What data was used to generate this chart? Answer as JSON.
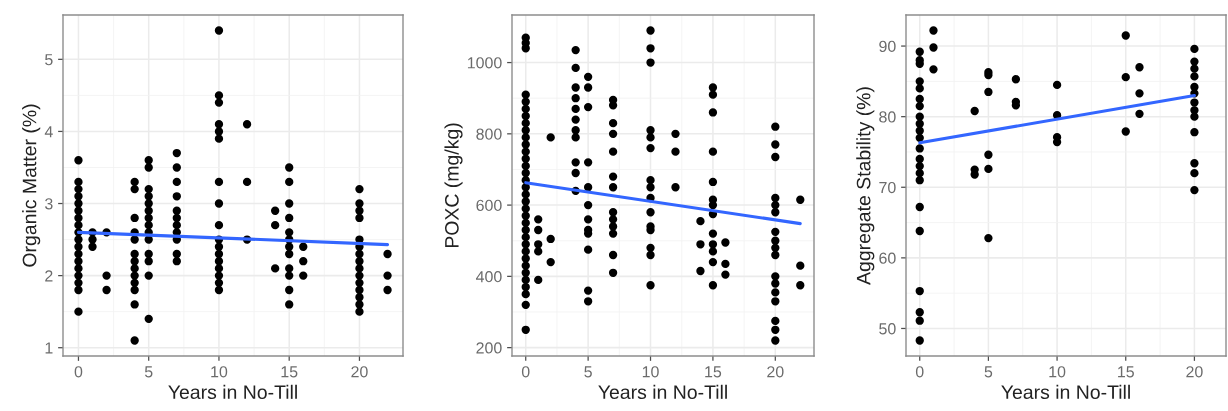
{
  "chart_data": [
    {
      "type": "scatter",
      "xlabel": "Years in No-Till",
      "ylabel": "Organic Matter (%)",
      "xlim": [
        -1.1,
        23.1
      ],
      "ylim": [
        0.885,
        5.615
      ],
      "xticks": [
        0,
        5,
        10,
        15,
        20
      ],
      "yticks": [
        1,
        2,
        3,
        4,
        5
      ],
      "grid": true,
      "series": [
        {
          "marker": "circle",
          "color": "#000000",
          "x": [
            0,
            0,
            0,
            0,
            0,
            0,
            0,
            0,
            0,
            0,
            0,
            0,
            0,
            0,
            0,
            0,
            0,
            0,
            1,
            1,
            1,
            2,
            2,
            2,
            4,
            4,
            4,
            4,
            4,
            4,
            4,
            4,
            4,
            4,
            4,
            4,
            4,
            5,
            5,
            5,
            5,
            5,
            5,
            5,
            5,
            5,
            5,
            5,
            5,
            5,
            5,
            7,
            7,
            7,
            7,
            7,
            7,
            7,
            7,
            7,
            7,
            7,
            10,
            10,
            10,
            10,
            10,
            10,
            10,
            10,
            10,
            10,
            10,
            10,
            10,
            10,
            10,
            10,
            10,
            12,
            12,
            12,
            14,
            14,
            14,
            15,
            15,
            15,
            15,
            15,
            15,
            15,
            15,
            15,
            15,
            15,
            15,
            16,
            16,
            16,
            20,
            20,
            20,
            20,
            20,
            20,
            20,
            20,
            20,
            20,
            20,
            20,
            20,
            20,
            20,
            22,
            22,
            22
          ],
          "values": [
            1.5,
            1.8,
            1.9,
            2.0,
            2.1,
            2.2,
            2.3,
            2.4,
            2.5,
            2.6,
            2.7,
            2.8,
            2.9,
            3.0,
            3.1,
            3.2,
            3.3,
            3.6,
            2.4,
            2.5,
            2.6,
            2.6,
            2.0,
            1.8,
            3.3,
            3.2,
            2.8,
            2.6,
            2.5,
            2.3,
            2.2,
            2.1,
            2.0,
            1.9,
            1.8,
            1.6,
            1.1,
            3.6,
            3.5,
            3.2,
            3.1,
            3.0,
            2.9,
            2.8,
            2.7,
            2.6,
            2.5,
            2.3,
            2.2,
            2.0,
            1.4,
            3.7,
            3.5,
            3.3,
            3.1,
            2.9,
            2.8,
            2.7,
            2.6,
            2.5,
            2.3,
            2.2,
            5.4,
            4.5,
            4.4,
            4.1,
            4.0,
            3.9,
            3.3,
            3.0,
            2.7,
            2.5,
            2.4,
            2.3,
            2.2,
            2.1,
            2.0,
            1.9,
            1.8,
            4.1,
            3.3,
            2.5,
            2.9,
            2.7,
            2.1,
            3.5,
            3.3,
            3.0,
            2.8,
            2.6,
            2.5,
            2.4,
            2.3,
            2.1,
            2.0,
            1.8,
            1.6,
            2.4,
            2.2,
            2.0,
            3.2,
            3.0,
            2.9,
            2.8,
            2.5,
            2.4,
            2.3,
            2.2,
            2.1,
            2.0,
            1.9,
            1.8,
            1.7,
            1.6,
            1.5,
            2.3,
            2.0,
            1.8
          ]
        },
        {
          "type": "line",
          "color": "#3366ff",
          "x": [
            0,
            22
          ],
          "values": [
            2.6,
            2.43
          ]
        }
      ]
    },
    {
      "type": "scatter",
      "xlabel": "Years in No-Till",
      "ylabel": "POXC (mg/kg)",
      "xlim": [
        -1.1,
        23.1
      ],
      "ylim": [
        176.5,
        1133.5
      ],
      "xticks": [
        0,
        5,
        10,
        15,
        20
      ],
      "yticks": [
        200,
        400,
        600,
        800,
        1000
      ],
      "grid": true,
      "series": [
        {
          "marker": "circle",
          "color": "#000000",
          "x": [
            0,
            0,
            0,
            0,
            0,
            0,
            0,
            0,
            0,
            0,
            0,
            0,
            0,
            0,
            0,
            0,
            0,
            0,
            0,
            0,
            0,
            0,
            0,
            0,
            0,
            0,
            0,
            0,
            0,
            0,
            0,
            0,
            0,
            0,
            1,
            1,
            1,
            1,
            1,
            2,
            2,
            2,
            4,
            4,
            4,
            4,
            4,
            4,
            4,
            4,
            4,
            4,
            4,
            5,
            5,
            5,
            5,
            5,
            5,
            5,
            5,
            5,
            5,
            5,
            5,
            7,
            7,
            7,
            7,
            7,
            7,
            7,
            7,
            7,
            7,
            7,
            7,
            7,
            10,
            10,
            10,
            10,
            10,
            10,
            10,
            10,
            10,
            10,
            10,
            10,
            10,
            10,
            10,
            12,
            12,
            12,
            14,
            14,
            14,
            15,
            15,
            15,
            15,
            15,
            15,
            15,
            15,
            15,
            15,
            15,
            15,
            15,
            16,
            16,
            16,
            20,
            20,
            20,
            20,
            20,
            20,
            20,
            20,
            20,
            20,
            20,
            20,
            20,
            20,
            20,
            20,
            20,
            22,
            22,
            22
          ],
          "values": [
            1070,
            1055,
            1040,
            910,
            890,
            870,
            850,
            830,
            810,
            790,
            770,
            750,
            730,
            710,
            690,
            670,
            650,
            630,
            610,
            590,
            570,
            550,
            530,
            510,
            490,
            470,
            450,
            430,
            410,
            390,
            370,
            350,
            320,
            250,
            560,
            530,
            490,
            470,
            390,
            790,
            505,
            440,
            1035,
            985,
            930,
            900,
            870,
            840,
            810,
            790,
            720,
            690,
            640,
            960,
            930,
            875,
            720,
            650,
            600,
            560,
            530,
            520,
            475,
            360,
            330,
            895,
            880,
            830,
            800,
            750,
            680,
            650,
            580,
            560,
            540,
            520,
            460,
            410,
            1090,
            1040,
            1000,
            810,
            790,
            760,
            670,
            650,
            620,
            580,
            540,
            530,
            480,
            460,
            375,
            800,
            750,
            650,
            555,
            490,
            415,
            930,
            910,
            860,
            750,
            665,
            615,
            600,
            575,
            520,
            490,
            470,
            440,
            375,
            495,
            435,
            405,
            820,
            770,
            735,
            620,
            600,
            580,
            525,
            500,
            480,
            460,
            400,
            380,
            355,
            330,
            275,
            250,
            220,
            615,
            430,
            375
          ]
        },
        {
          "type": "line",
          "color": "#3366ff",
          "x": [
            0,
            22
          ],
          "values": [
            663,
            548
          ]
        }
      ]
    },
    {
      "type": "scatter",
      "xlabel": "Years in No-Till",
      "ylabel": "Aggregate Stability (%)",
      "xlim": [
        -1,
        22.3
      ],
      "ylim": [
        46.1,
        94.4
      ],
      "xticks": [
        0,
        5,
        10,
        15,
        20
      ],
      "yticks": [
        50,
        60,
        70,
        80,
        90
      ],
      "grid": true,
      "series": [
        {
          "marker": "circle",
          "color": "#000000",
          "x": [
            0,
            0,
            0,
            0,
            0,
            0,
            0,
            0,
            0,
            0,
            0,
            0,
            0,
            0,
            0,
            0,
            0,
            0,
            0,
            0,
            0,
            0,
            1,
            1,
            1,
            4,
            4,
            4,
            5,
            5,
            5,
            5,
            5,
            5,
            7,
            7,
            7,
            10,
            10,
            10,
            10,
            15,
            15,
            15,
            16,
            16,
            16,
            20,
            20,
            20,
            20,
            20,
            20,
            20,
            20,
            20,
            20,
            20,
            20,
            20
          ],
          "values": [
            89.2,
            88,
            87.5,
            85,
            84,
            82.5,
            81.5,
            80,
            79,
            78,
            77,
            75.5,
            74,
            73,
            72,
            71,
            67.2,
            63.8,
            55.3,
            52.3,
            51.1,
            48.3,
            92.2,
            89.8,
            86.7,
            80.8,
            72.5,
            71.8,
            86.3,
            85.9,
            83.5,
            74.6,
            72.6,
            62.8,
            85.3,
            82.1,
            81.6,
            84.5,
            80.2,
            77.1,
            76.4,
            91.5,
            85.6,
            77.9,
            87,
            83.3,
            80.4,
            89.6,
            87.8,
            86.8,
            85.7,
            84.2,
            83.3,
            82,
            80.9,
            80,
            77.8,
            73.4,
            72,
            69.6
          ]
        },
        {
          "type": "line",
          "color": "#3366ff",
          "x": [
            0,
            20
          ],
          "values": [
            76.3,
            83.0
          ]
        }
      ]
    }
  ]
}
